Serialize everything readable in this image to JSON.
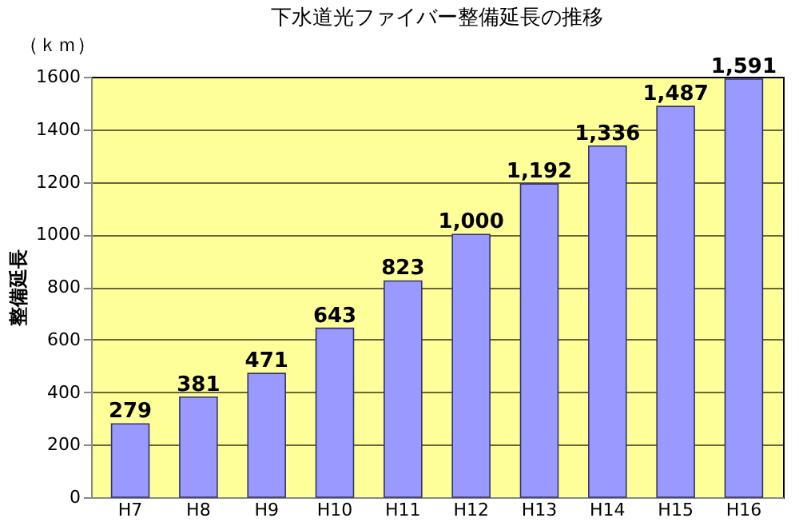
{
  "chart_data": {
    "type": "bar",
    "title": "下水道光ファイバー整備延長の推移",
    "ylabel": "整備延長",
    "annotations": [
      "（ｋｍ）"
    ],
    "categories": [
      "H7",
      "H8",
      "H9",
      "H10",
      "H11",
      "H12",
      "H13",
      "H14",
      "H15",
      "H16"
    ],
    "values": [
      279,
      381,
      471,
      643,
      823,
      1000,
      1192,
      1336,
      1487,
      1591
    ],
    "value_labels": [
      "279",
      "381",
      "471",
      "643",
      "823",
      "1,000",
      "1,192",
      "1,336",
      "1,487",
      "1,591"
    ],
    "color": "#9999ff",
    "ylim": [
      0,
      1600
    ],
    "yticks": [
      0,
      200,
      400,
      600,
      800,
      1000,
      1200,
      1400,
      1600
    ],
    "grid": "y"
  }
}
